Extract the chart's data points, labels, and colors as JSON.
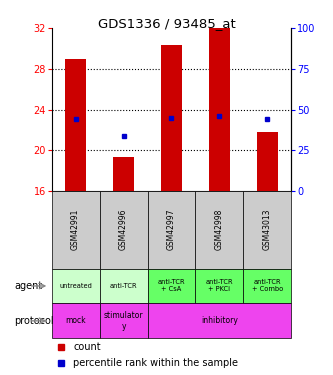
{
  "title": "GDS1336 / 93485_at",
  "samples": [
    "GSM42991",
    "GSM42996",
    "GSM42997",
    "GSM42998",
    "GSM43013"
  ],
  "count_values": [
    29.0,
    19.3,
    30.3,
    32.0,
    21.8
  ],
  "count_base": 16,
  "percentile_values": [
    44.0,
    34.0,
    45.0,
    46.0,
    44.0
  ],
  "ylim_left": [
    16,
    32
  ],
  "ylim_right": [
    0,
    100
  ],
  "yticks_left": [
    16,
    20,
    24,
    28,
    32
  ],
  "yticks_right": [
    0,
    25,
    50,
    75,
    100
  ],
  "agent_labels": [
    "untreated",
    "anti-TCR",
    "anti-TCR\n+ CsA",
    "anti-TCR\n+ PKCi",
    "anti-TCR\n+ Combo"
  ],
  "agent_col_colors": [
    "#ccffcc",
    "#ccffcc",
    "#66ff66",
    "#66ff66",
    "#66ff66"
  ],
  "protocol_color": "#ee44ee",
  "sample_bg_color": "#cccccc",
  "bar_color": "#cc0000",
  "percentile_color": "#0000cc",
  "legend_count_color": "#cc0000",
  "legend_pct_color": "#0000cc",
  "grid_lines": [
    20,
    24,
    28
  ]
}
